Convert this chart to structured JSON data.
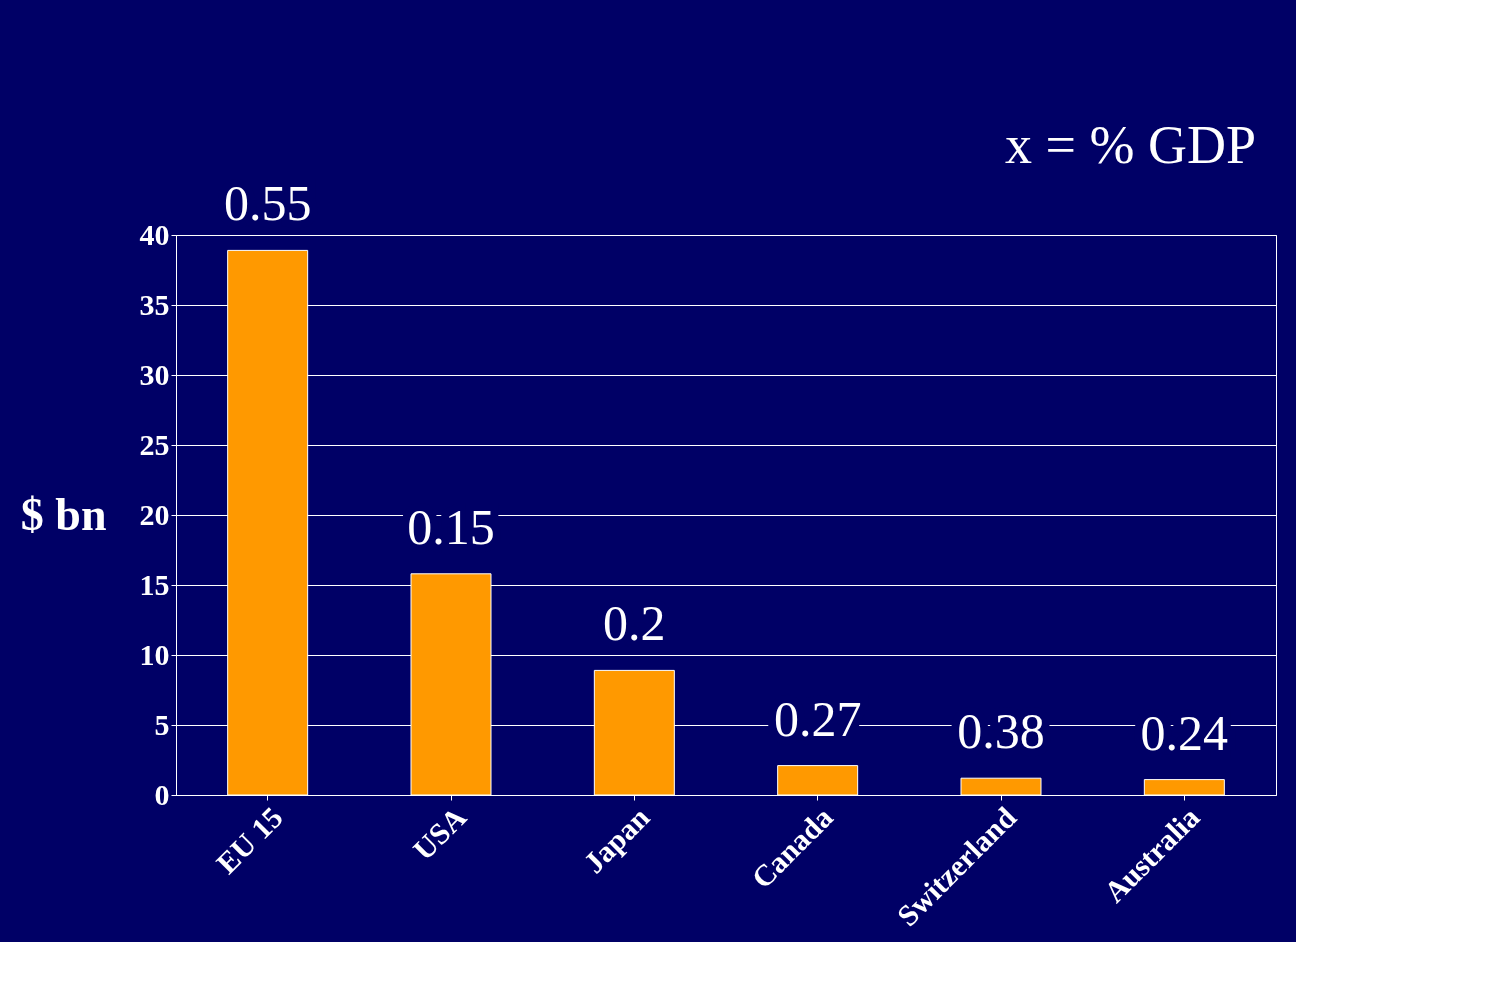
{
  "chart_data": {
    "type": "bar",
    "ylabel": "$ bn",
    "categories": [
      "EU 15",
      "USA",
      "Japan",
      "Canada",
      "Switzerland",
      "Australia"
    ],
    "values": [
      38.9,
      15.8,
      8.9,
      2.1,
      1.2,
      1.1
    ],
    "color": "#ff9900",
    "ylim": [
      0,
      40
    ],
    "yticks": [
      0,
      5,
      10,
      15,
      20,
      25,
      30,
      35,
      40
    ],
    "grid": "y",
    "annotations": [
      {
        "text": "0.55",
        "x": "EU 15",
        "y": 38.9
      },
      {
        "text": "0.15",
        "x": "USA",
        "y": 15.8
      },
      {
        "text": "0.2",
        "x": "Japan",
        "y": 8.9
      },
      {
        "text": "0.27",
        "x": "Canada",
        "y": 2.1
      },
      {
        "text": "0.38",
        "x": "Switzerland",
        "y": 1.2
      },
      {
        "text": "0.24",
        "x": "Australia",
        "y": 1.1
      },
      "x = % GDP"
    ]
  }
}
